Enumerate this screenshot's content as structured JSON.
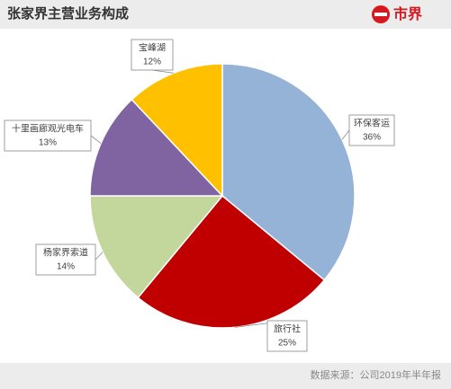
{
  "chart_data": {
    "type": "pie",
    "title": "张家界主营业务构成",
    "categories": [
      "环保客运",
      "旅行社",
      "杨家界索道",
      "十里画廊观光电车",
      "宝峰湖"
    ],
    "values": [
      36,
      25,
      14,
      13,
      12
    ],
    "value_labels": [
      "36%",
      "25%",
      "14%",
      "13%",
      "12%"
    ],
    "colors": [
      "#95b3d7",
      "#c00000",
      "#c3d69b",
      "#8064a2",
      "#ffc000"
    ]
  },
  "logo": "市界",
  "source": "数据来源：公司2019年半年报"
}
